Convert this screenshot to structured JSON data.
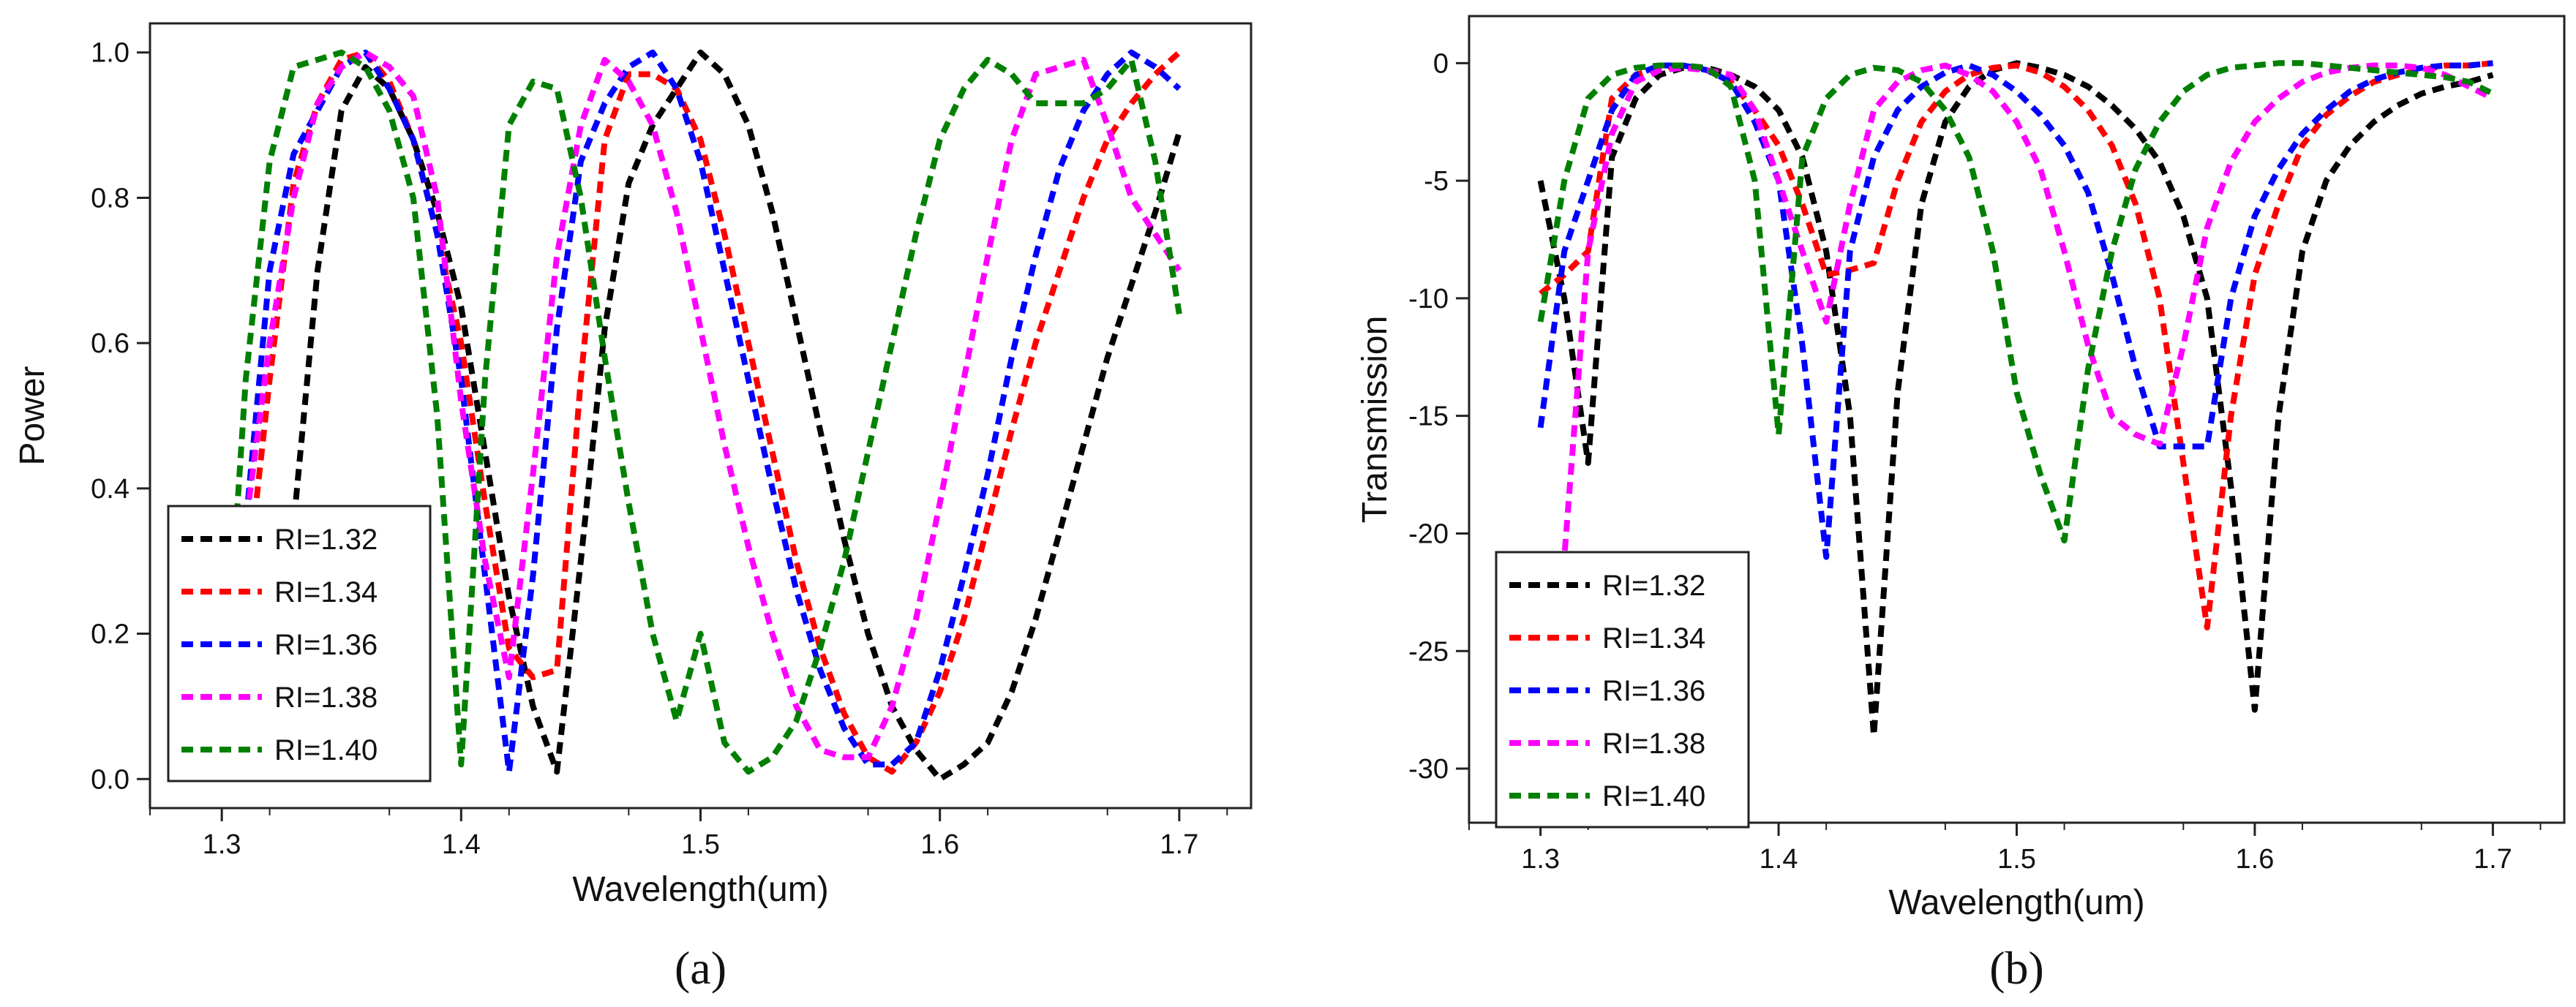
{
  "chart_data": [
    {
      "type": "line",
      "panel_label": "(a)",
      "xlabel": "Wavelength(um)",
      "ylabel": "Power",
      "xlim": [
        1.27,
        1.73
      ],
      "ylim": [
        -0.04,
        1.04
      ],
      "xticks": [
        1.3,
        1.4,
        1.5,
        1.6,
        1.7
      ],
      "xtick_labels": [
        "1.3",
        "1.4",
        "1.5",
        "1.6",
        "1.7"
      ],
      "yticks": [
        0.0,
        0.2,
        0.4,
        0.6,
        0.8,
        1.0
      ],
      "ytick_labels": [
        "0.0",
        "0.2",
        "0.4",
        "0.6",
        "0.8",
        "1.0"
      ],
      "legend_position": "bottom-left",
      "line_style": "dashed",
      "series": [
        {
          "name": "RI=1.32",
          "color": "#000000",
          "x": [
            1.32,
            1.33,
            1.34,
            1.35,
            1.36,
            1.37,
            1.38,
            1.39,
            1.4,
            1.41,
            1.42,
            1.43,
            1.44,
            1.45,
            1.46,
            1.47,
            1.48,
            1.49,
            1.5,
            1.51,
            1.52,
            1.53,
            1.54,
            1.55,
            1.56,
            1.57,
            1.58,
            1.59,
            1.6,
            1.61,
            1.62,
            1.63,
            1.64,
            1.65,
            1.66,
            1.67,
            1.68,
            1.69,
            1.7
          ],
          "y": [
            0.02,
            0.35,
            0.7,
            0.92,
            0.98,
            0.95,
            0.88,
            0.78,
            0.65,
            0.45,
            0.25,
            0.1,
            0.01,
            0.3,
            0.62,
            0.82,
            0.9,
            0.95,
            1.0,
            0.97,
            0.9,
            0.78,
            0.63,
            0.48,
            0.33,
            0.2,
            0.1,
            0.04,
            0.0,
            0.02,
            0.05,
            0.12,
            0.22,
            0.34,
            0.46,
            0.58,
            0.68,
            0.78,
            0.89
          ]
        },
        {
          "name": "RI=1.34",
          "color": "#ff0000",
          "x": [
            1.3,
            1.31,
            1.32,
            1.33,
            1.34,
            1.35,
            1.36,
            1.37,
            1.38,
            1.39,
            1.4,
            1.41,
            1.42,
            1.43,
            1.44,
            1.45,
            1.46,
            1.47,
            1.48,
            1.49,
            1.5,
            1.51,
            1.52,
            1.53,
            1.54,
            1.55,
            1.56,
            1.57,
            1.58,
            1.59,
            1.6,
            1.61,
            1.62,
            1.63,
            1.64,
            1.65,
            1.66,
            1.67,
            1.68,
            1.69,
            1.7
          ],
          "y": [
            0.05,
            0.25,
            0.55,
            0.82,
            0.93,
            0.99,
            1.0,
            0.96,
            0.88,
            0.75,
            0.6,
            0.38,
            0.18,
            0.14,
            0.15,
            0.55,
            0.88,
            0.97,
            0.97,
            0.95,
            0.88,
            0.75,
            0.6,
            0.45,
            0.3,
            0.18,
            0.09,
            0.03,
            0.01,
            0.05,
            0.12,
            0.22,
            0.35,
            0.48,
            0.6,
            0.7,
            0.8,
            0.88,
            0.93,
            0.97,
            1.0
          ]
        },
        {
          "name": "RI=1.36",
          "color": "#0000ff",
          "x": [
            1.3,
            1.31,
            1.32,
            1.33,
            1.34,
            1.35,
            1.36,
            1.37,
            1.38,
            1.39,
            1.4,
            1.41,
            1.42,
            1.43,
            1.44,
            1.45,
            1.46,
            1.47,
            1.48,
            1.49,
            1.5,
            1.51,
            1.52,
            1.53,
            1.54,
            1.55,
            1.56,
            1.57,
            1.58,
            1.59,
            1.6,
            1.61,
            1.62,
            1.63,
            1.64,
            1.65,
            1.66,
            1.67,
            1.68,
            1.69,
            1.7
          ],
          "y": [
            0.02,
            0.35,
            0.7,
            0.86,
            0.92,
            0.98,
            1.0,
            0.95,
            0.88,
            0.75,
            0.55,
            0.28,
            0.01,
            0.28,
            0.62,
            0.85,
            0.93,
            0.98,
            1.0,
            0.95,
            0.85,
            0.7,
            0.55,
            0.4,
            0.26,
            0.15,
            0.07,
            0.02,
            0.02,
            0.05,
            0.15,
            0.28,
            0.42,
            0.58,
            0.72,
            0.84,
            0.92,
            0.97,
            1.0,
            0.98,
            0.95
          ]
        },
        {
          "name": "RI=1.38",
          "color": "#ff00ff",
          "x": [
            1.3,
            1.31,
            1.32,
            1.33,
            1.34,
            1.35,
            1.36,
            1.37,
            1.38,
            1.39,
            1.4,
            1.41,
            1.42,
            1.43,
            1.44,
            1.45,
            1.46,
            1.47,
            1.48,
            1.49,
            1.5,
            1.51,
            1.52,
            1.53,
            1.54,
            1.55,
            1.56,
            1.57,
            1.58,
            1.59,
            1.6,
            1.61,
            1.62,
            1.63,
            1.64,
            1.65,
            1.66,
            1.67,
            1.68,
            1.69,
            1.7
          ],
          "y": [
            0.1,
            0.35,
            0.6,
            0.8,
            0.93,
            0.98,
            1.0,
            0.98,
            0.94,
            0.8,
            0.52,
            0.3,
            0.14,
            0.42,
            0.72,
            0.9,
            0.99,
            0.96,
            0.9,
            0.78,
            0.62,
            0.46,
            0.32,
            0.2,
            0.1,
            0.04,
            0.03,
            0.03,
            0.1,
            0.22,
            0.38,
            0.55,
            0.72,
            0.88,
            0.97,
            0.98,
            0.99,
            0.9,
            0.8,
            0.75,
            0.7
          ]
        },
        {
          "name": "RI=1.40",
          "color": "#008000",
          "x": [
            1.3,
            1.31,
            1.32,
            1.33,
            1.34,
            1.35,
            1.36,
            1.37,
            1.38,
            1.39,
            1.4,
            1.41,
            1.42,
            1.43,
            1.44,
            1.45,
            1.46,
            1.47,
            1.48,
            1.49,
            1.5,
            1.51,
            1.52,
            1.53,
            1.54,
            1.55,
            1.56,
            1.57,
            1.58,
            1.59,
            1.6,
            1.61,
            1.62,
            1.63,
            1.64,
            1.65,
            1.66,
            1.67,
            1.68,
            1.69,
            1.7
          ],
          "y": [
            0.05,
            0.55,
            0.85,
            0.98,
            0.99,
            1.0,
            0.98,
            0.92,
            0.8,
            0.5,
            0.02,
            0.55,
            0.9,
            0.96,
            0.95,
            0.8,
            0.58,
            0.38,
            0.2,
            0.08,
            0.2,
            0.05,
            0.01,
            0.03,
            0.08,
            0.18,
            0.3,
            0.45,
            0.6,
            0.75,
            0.88,
            0.95,
            0.99,
            0.97,
            0.93,
            0.93,
            0.93,
            0.95,
            0.99,
            0.85,
            0.64
          ]
        }
      ]
    },
    {
      "type": "line",
      "panel_label": "(b)",
      "xlabel": "Wavelength(um)",
      "ylabel": "Transmission",
      "xlim": [
        1.27,
        1.73
      ],
      "ylim": [
        -32.3,
        2.0
      ],
      "xticks": [
        1.3,
        1.4,
        1.5,
        1.6,
        1.7
      ],
      "xtick_labels": [
        "1.3",
        "1.4",
        "1.5",
        "1.6",
        "1.7"
      ],
      "yticks": [
        0,
        -5,
        -10,
        -15,
        -20,
        -25,
        -30
      ],
      "ytick_labels": [
        "0",
        "-5",
        "-10",
        "-15",
        "-20",
        "-25",
        "-30"
      ],
      "legend_position": "bottom-left",
      "line_style": "dashed",
      "series": [
        {
          "name": "RI=1.32",
          "color": "#000000",
          "x": [
            1.3,
            1.31,
            1.32,
            1.33,
            1.34,
            1.35,
            1.36,
            1.37,
            1.38,
            1.39,
            1.4,
            1.41,
            1.42,
            1.43,
            1.44,
            1.45,
            1.46,
            1.47,
            1.48,
            1.49,
            1.5,
            1.51,
            1.52,
            1.53,
            1.54,
            1.55,
            1.56,
            1.57,
            1.58,
            1.59,
            1.6,
            1.61,
            1.62,
            1.63,
            1.64,
            1.65,
            1.66,
            1.67,
            1.68,
            1.69,
            1.7
          ],
          "y": [
            -5,
            -10,
            -17,
            -4,
            -1.5,
            -0.5,
            -0.2,
            -0.2,
            -0.5,
            -1.0,
            -2,
            -4,
            -8,
            -15,
            -28.6,
            -14,
            -6,
            -2.5,
            -1,
            -0.3,
            0,
            -0.2,
            -0.5,
            -1,
            -1.8,
            -2.8,
            -4.2,
            -6.5,
            -10,
            -18,
            -27.5,
            -15,
            -8,
            -5,
            -3.5,
            -2.5,
            -1.8,
            -1.3,
            -1,
            -0.8,
            -0.5
          ]
        },
        {
          "name": "RI=1.34",
          "color": "#ff0000",
          "x": [
            1.3,
            1.31,
            1.32,
            1.33,
            1.34,
            1.35,
            1.36,
            1.37,
            1.38,
            1.39,
            1.4,
            1.41,
            1.42,
            1.43,
            1.44,
            1.45,
            1.46,
            1.47,
            1.48,
            1.49,
            1.5,
            1.51,
            1.52,
            1.53,
            1.54,
            1.55,
            1.56,
            1.57,
            1.58,
            1.59,
            1.6,
            1.61,
            1.62,
            1.63,
            1.64,
            1.65,
            1.66,
            1.67,
            1.68,
            1.69,
            1.7
          ],
          "y": [
            -9.8,
            -9,
            -8,
            -1.5,
            -0.5,
            -0.2,
            -0.1,
            -0.3,
            -0.8,
            -2,
            -3.5,
            -6,
            -9,
            -8.8,
            -8.5,
            -5,
            -2.5,
            -1.2,
            -0.5,
            -0.2,
            -0.1,
            -0.4,
            -1,
            -2,
            -3.5,
            -6,
            -10,
            -17,
            -24,
            -15,
            -9,
            -6,
            -3.5,
            -2.2,
            -1.4,
            -0.8,
            -0.5,
            -0.3,
            -0.1,
            -0.1,
            0
          ]
        },
        {
          "name": "RI=1.36",
          "color": "#0000ff",
          "x": [
            1.3,
            1.31,
            1.32,
            1.33,
            1.34,
            1.35,
            1.36,
            1.37,
            1.38,
            1.39,
            1.4,
            1.41,
            1.42,
            1.43,
            1.44,
            1.45,
            1.46,
            1.47,
            1.48,
            1.49,
            1.5,
            1.51,
            1.52,
            1.53,
            1.54,
            1.55,
            1.56,
            1.57,
            1.58,
            1.59,
            1.6,
            1.61,
            1.62,
            1.63,
            1.64,
            1.65,
            1.66,
            1.67,
            1.68,
            1.69,
            1.7
          ],
          "y": [
            -15.5,
            -8,
            -5,
            -2,
            -0.5,
            -0.1,
            -0.1,
            -0.3,
            -0.8,
            -2.5,
            -5,
            -12,
            -21,
            -8,
            -4,
            -2,
            -1,
            -0.4,
            -0.1,
            -0.5,
            -1.2,
            -2.2,
            -3.5,
            -5.5,
            -9,
            -13,
            -16.3,
            -16.3,
            -16.3,
            -10,
            -6.5,
            -4.5,
            -3,
            -2,
            -1.2,
            -0.7,
            -0.4,
            -0.2,
            -0.1,
            -0.1,
            0
          ]
        },
        {
          "name": "RI=1.38",
          "color": "#ff00ff",
          "x": [
            1.3,
            1.31,
            1.32,
            1.33,
            1.34,
            1.35,
            1.36,
            1.37,
            1.38,
            1.39,
            1.4,
            1.41,
            1.42,
            1.43,
            1.44,
            1.45,
            1.46,
            1.47,
            1.48,
            1.49,
            1.5,
            1.51,
            1.52,
            1.53,
            1.54,
            1.55,
            1.56,
            1.57,
            1.58,
            1.59,
            1.6,
            1.61,
            1.62,
            1.63,
            1.64,
            1.65,
            1.66,
            1.67,
            1.68,
            1.69,
            1.7
          ],
          "y": [
            -32,
            -21,
            -8,
            -3,
            -0.8,
            -0.3,
            -0.2,
            -0.3,
            -0.5,
            -2,
            -5,
            -8,
            -11,
            -6,
            -2,
            -0.8,
            -0.3,
            -0.1,
            -0.5,
            -1.2,
            -2.5,
            -4.5,
            -8,
            -12,
            -15,
            -15.8,
            -16.2,
            -12,
            -7,
            -4.2,
            -2.5,
            -1.5,
            -0.8,
            -0.4,
            -0.2,
            -0.1,
            -0.1,
            -0.2,
            -0.5,
            -1,
            -1.5
          ]
        },
        {
          "name": "RI=1.40",
          "color": "#008000",
          "x": [
            1.3,
            1.31,
            1.32,
            1.33,
            1.34,
            1.35,
            1.36,
            1.37,
            1.38,
            1.39,
            1.4,
            1.41,
            1.42,
            1.43,
            1.44,
            1.45,
            1.46,
            1.47,
            1.48,
            1.49,
            1.5,
            1.51,
            1.52,
            1.53,
            1.54,
            1.55,
            1.56,
            1.57,
            1.58,
            1.59,
            1.6,
            1.61,
            1.62,
            1.63,
            1.64,
            1.65,
            1.66,
            1.67,
            1.68,
            1.69,
            1.7
          ],
          "y": [
            -11,
            -5,
            -1.5,
            -0.5,
            -0.2,
            -0.1,
            -0.1,
            -0.2,
            -1,
            -5,
            -15.8,
            -4,
            -1.5,
            -0.5,
            -0.2,
            -0.3,
            -0.8,
            -2,
            -4,
            -8,
            -14,
            -17.5,
            -20.3,
            -13,
            -8,
            -4.5,
            -2.5,
            -1.2,
            -0.5,
            -0.2,
            -0.1,
            0,
            0,
            -0.1,
            -0.2,
            -0.3,
            -0.4,
            -0.5,
            -0.6,
            -0.8,
            -1.3
          ]
        }
      ]
    }
  ]
}
